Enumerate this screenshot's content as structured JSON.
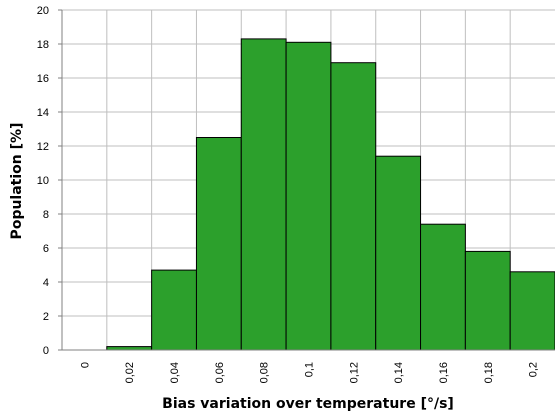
{
  "chart_data": {
    "type": "bar",
    "title": "",
    "xlabel": "Bias variation over temperature [°/s]",
    "ylabel": "Population [%]",
    "x_tick_labels": [
      "0",
      "0,02",
      "0,04",
      "0,06",
      "0,08",
      "0,1",
      "0,12",
      "0,14",
      "0,16",
      "0,18",
      "0,2"
    ],
    "y_tick_labels": [
      "0",
      "2",
      "4",
      "6",
      "8",
      "10",
      "12",
      "14",
      "16",
      "18",
      "20"
    ],
    "ylim": [
      0,
      20
    ],
    "grid": true,
    "bar_color": "#2ca02c",
    "bins": [
      {
        "from": 0.0,
        "to": 0.02,
        "value": 0.0
      },
      {
        "from": 0.02,
        "to": 0.04,
        "value": 0.2
      },
      {
        "from": 0.04,
        "to": 0.06,
        "value": 4.7
      },
      {
        "from": 0.06,
        "to": 0.08,
        "value": 12.5
      },
      {
        "from": 0.08,
        "to": 0.1,
        "value": 18.3
      },
      {
        "from": 0.1,
        "to": 0.12,
        "value": 18.1
      },
      {
        "from": 0.12,
        "to": 0.14,
        "value": 16.9
      },
      {
        "from": 0.14,
        "to": 0.16,
        "value": 11.4
      },
      {
        "from": 0.16,
        "to": 0.18,
        "value": 7.4
      },
      {
        "from": 0.18,
        "to": 0.2,
        "value": 5.8
      },
      {
        "from": 0.2,
        "to": 0.22,
        "value": 4.6
      }
    ]
  }
}
